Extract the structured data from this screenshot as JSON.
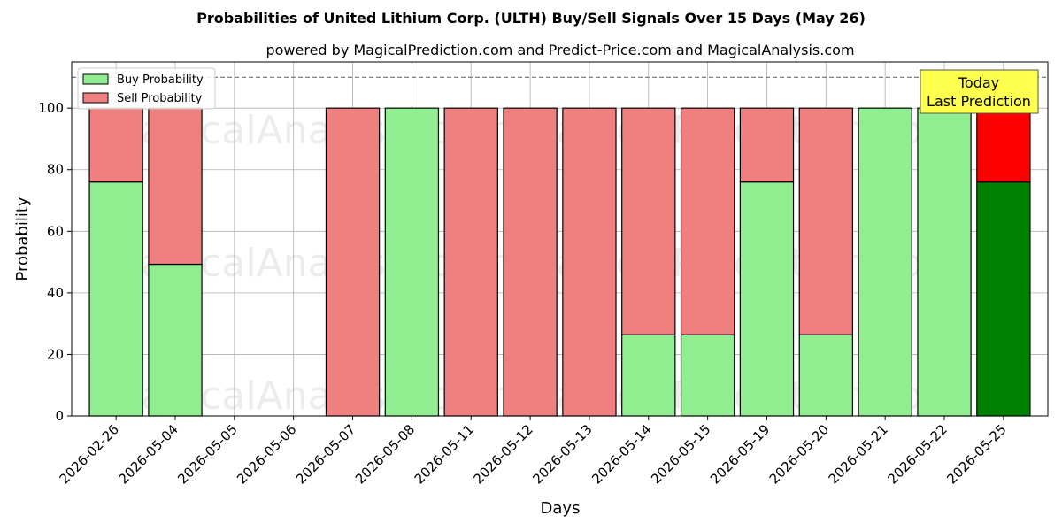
{
  "chart_data": {
    "type": "bar",
    "stacked": true,
    "title": "Probabilities of United Lithium Corp. (ULTH) Buy/Sell Signals Over 15 Days (May 26)",
    "subtitle": "powered by MagicalPrediction.com and Predict-Price.com and MagicalAnalysis.com",
    "xlabel": "Days",
    "ylabel": "Probability",
    "ylim": [
      0,
      115
    ],
    "yticks": [
      0,
      20,
      40,
      60,
      80,
      100
    ],
    "grid": true,
    "legend_position": "top-left",
    "reference_line": 110,
    "categories": [
      "2026-02-26",
      "2026-05-04",
      "2026-05-05",
      "2026-05-06",
      "2026-05-07",
      "2026-05-08",
      "2026-05-11",
      "2026-05-12",
      "2026-05-13",
      "2026-05-14",
      "2026-05-15",
      "2026-05-19",
      "2026-05-20",
      "2026-05-21",
      "2026-05-22",
      "2026-05-25"
    ],
    "series": [
      {
        "name": "Buy Probability",
        "color": "#90ee90",
        "values": [
          76,
          49.3,
          0,
          0,
          0,
          100,
          0,
          0,
          0,
          26.4,
          26.4,
          76,
          26.4,
          100,
          100,
          76
        ]
      },
      {
        "name": "Sell Probability",
        "color": "#f08080",
        "values": [
          24,
          50.7,
          0,
          0,
          100,
          0,
          100,
          100,
          100,
          73.6,
          73.6,
          24,
          73.6,
          0,
          0,
          24
        ]
      }
    ],
    "highlight": {
      "index": 15,
      "buy_color": "#008000",
      "sell_color": "#ff0000"
    },
    "annotation": {
      "lines": [
        "Today",
        "Last Prediction"
      ],
      "color": "#ffff4d"
    },
    "watermarks": [
      "MagicalAnalysis.com",
      "MagicalPrediction.com"
    ]
  }
}
